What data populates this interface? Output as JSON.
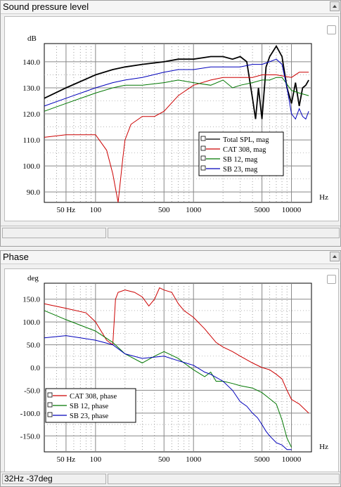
{
  "spl_panel": {
    "title": "Sound pressure level",
    "y_unit": "dB",
    "x_unit": "Hz",
    "y_ticks": [
      "140.0",
      "130.0",
      "120.0",
      "110.0",
      "100.0",
      "90.0"
    ],
    "x_ticks": [
      "50 Hz",
      "100",
      "500",
      "1000",
      "5000",
      "10000"
    ],
    "legend": [
      "Total SPL, mag",
      "CAT 308, mag",
      "SB 12, mag",
      "SB 23, mag"
    ]
  },
  "phase_panel": {
    "title": "Phase",
    "y_unit": "deg",
    "x_unit": "Hz",
    "y_ticks": [
      "150.0",
      "100.0",
      "50.0",
      "0.0",
      "-50.0",
      "-100.0",
      "-150.0"
    ],
    "x_ticks": [
      "50 Hz",
      "100",
      "500",
      "1000",
      "5000",
      "10000"
    ],
    "legend": [
      "CAT 308, phase",
      "SB 12, phase",
      "SB 23, phase"
    ]
  },
  "status": {
    "cursor_readout": "32Hz -37deg"
  },
  "colors": {
    "total": "#000000",
    "cat": "#cc0000",
    "sb12": "#007700",
    "sb23": "#0000bb"
  },
  "chart_data": [
    {
      "type": "line",
      "title": "Sound pressure level",
      "xlabel": "Hz",
      "ylabel": "dB",
      "xscale": "log",
      "xlim": [
        30,
        16000
      ],
      "ylim": [
        86,
        147
      ],
      "grid": true,
      "legend_position": "lower-right",
      "series": [
        {
          "name": "Total SPL, mag",
          "x": [
            30,
            50,
            100,
            150,
            200,
            300,
            500,
            700,
            1000,
            1500,
            2000,
            2500,
            3000,
            3500,
            4000,
            4300,
            4600,
            5000,
            5500,
            6000,
            7000,
            8000,
            9000,
            10000,
            11000,
            12000,
            13000,
            14000,
            15000
          ],
          "y": [
            126,
            130,
            135,
            137,
            138,
            139,
            140,
            141,
            141,
            142,
            142,
            141,
            142,
            140,
            126,
            118,
            130,
            118,
            138,
            142,
            146,
            142,
            130,
            124,
            132,
            123,
            130,
            131,
            133
          ]
        },
        {
          "name": "CAT 308, mag",
          "x": [
            30,
            50,
            100,
            130,
            150,
            170,
            190,
            200,
            230,
            300,
            400,
            500,
            700,
            1000,
            1500,
            2000,
            3000,
            4000,
            5000,
            7000,
            10000,
            12000,
            15000
          ],
          "y": [
            111,
            112,
            112,
            106,
            97,
            86,
            103,
            110,
            116,
            119,
            119,
            121,
            127,
            131,
            133,
            134,
            134,
            134,
            135,
            135,
            134,
            136,
            136
          ]
        },
        {
          "name": "SB 12, mag",
          "x": [
            30,
            50,
            100,
            150,
            200,
            300,
            500,
            700,
            1000,
            1500,
            2000,
            2500,
            3000,
            4000,
            5000,
            6000,
            7000,
            8000,
            10000,
            12000,
            15000
          ],
          "y": [
            121,
            124,
            128,
            130,
            131,
            131,
            132,
            133,
            132,
            131,
            133,
            130,
            131,
            132,
            133,
            133,
            134,
            134,
            129,
            128,
            127
          ]
        },
        {
          "name": "SB 23, mag",
          "x": [
            30,
            50,
            100,
            150,
            200,
            300,
            500,
            700,
            1000,
            1500,
            2000,
            3000,
            4000,
            5000,
            6000,
            7000,
            8000,
            9000,
            10000,
            11000,
            12000,
            13000,
            14000,
            15000
          ],
          "y": [
            123,
            126,
            130,
            132,
            133,
            134,
            136,
            137,
            137,
            138,
            138,
            138,
            139,
            139,
            140,
            141,
            139,
            130,
            120,
            118,
            122,
            119,
            118,
            121
          ]
        }
      ]
    },
    {
      "type": "line",
      "title": "Phase",
      "xlabel": "Hz",
      "ylabel": "deg",
      "xscale": "log",
      "xlim": [
        30,
        16000
      ],
      "ylim": [
        -185,
        185
      ],
      "grid": true,
      "legend_position": "lower-left",
      "series": [
        {
          "name": "CAT 308, phase",
          "x": [
            30,
            50,
            80,
            100,
            130,
            150,
            160,
            170,
            200,
            250,
            300,
            350,
            400,
            450,
            500,
            600,
            700,
            800,
            1000,
            1300,
            1700,
            2000,
            2500,
            3000,
            4000,
            5000,
            6000,
            7000,
            8000,
            9000,
            10000,
            12000,
            15000
          ],
          "y": [
            140,
            130,
            120,
            100,
            60,
            50,
            150,
            165,
            170,
            165,
            155,
            135,
            150,
            175,
            170,
            165,
            140,
            125,
            110,
            85,
            55,
            45,
            35,
            25,
            10,
            0,
            -5,
            -15,
            -25,
            -50,
            -70,
            -80,
            -100
          ]
        },
        {
          "name": "SB 12, phase",
          "x": [
            30,
            50,
            100,
            150,
            200,
            300,
            400,
            500,
            700,
            800,
            1000,
            1300,
            1500,
            1700,
            2000,
            2500,
            3000,
            4000,
            5000,
            7000,
            8000,
            9000,
            10000
          ],
          "y": [
            125,
            105,
            80,
            55,
            30,
            10,
            25,
            35,
            20,
            10,
            -5,
            -20,
            -10,
            -30,
            -30,
            -35,
            -40,
            -45,
            -55,
            -80,
            -115,
            -155,
            -175
          ]
        },
        {
          "name": "SB 23, phase",
          "x": [
            30,
            50,
            70,
            100,
            150,
            200,
            300,
            500,
            700,
            1000,
            1300,
            1500,
            2000,
            2500,
            3000,
            3500,
            4000,
            4500,
            5000,
            5500,
            6000,
            7000,
            8000,
            9000,
            10000
          ],
          "y": [
            65,
            70,
            65,
            60,
            50,
            30,
            20,
            25,
            15,
            5,
            -10,
            -15,
            -30,
            -50,
            -75,
            -85,
            -100,
            -110,
            -125,
            -140,
            -150,
            -165,
            -170,
            -180,
            -180
          ]
        }
      ]
    }
  ]
}
